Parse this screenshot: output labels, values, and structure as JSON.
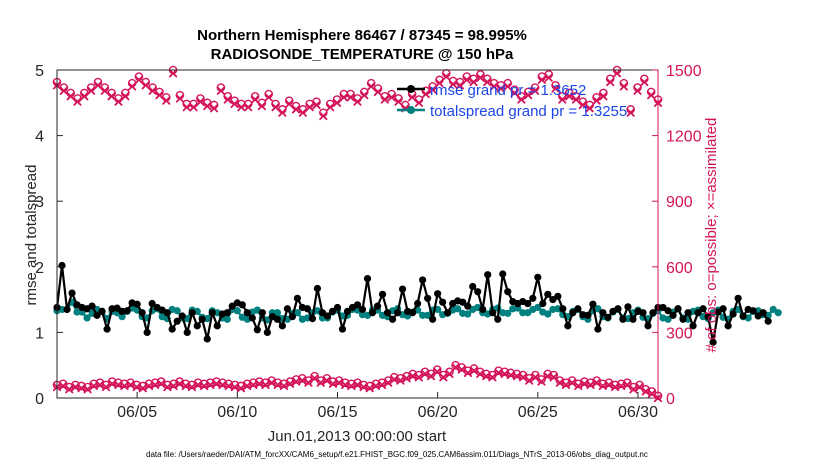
{
  "chart_data": {
    "type": "line",
    "title": [
      "Northern Hemisphere 86467 / 87345 = 98.995%",
      "RADIOSONDE_TEMPERATURE @ 150 hPa"
    ],
    "xlabel": "Jun.01,2013 00:00:00 start",
    "ylabel_left": "rmse and totalspread",
    "ylabel_right": "# of obs: o=possible; ×=assimilated",
    "xlim": [
      1,
      31
    ],
    "ylim_left": [
      0,
      5
    ],
    "ylim_right": [
      0,
      1500
    ],
    "x_ticks": [
      {
        "x": 5,
        "label": "06/05"
      },
      {
        "x": 10,
        "label": "06/10"
      },
      {
        "x": 15,
        "label": "06/15"
      },
      {
        "x": 20,
        "label": "06/20"
      },
      {
        "x": 25,
        "label": "06/25"
      },
      {
        "x": 30,
        "label": "06/30"
      }
    ],
    "y_ticks_left": [
      "0",
      "1",
      "2",
      "3",
      "4",
      "5"
    ],
    "y_ticks_right": [
      "0",
      "300",
      "600",
      "900",
      "1200",
      "1500"
    ],
    "colors": {
      "rmse": "#000000",
      "spread": "#00807e",
      "obs": "#d4145a",
      "legend_text": "#1e46e6"
    },
    "legend": {
      "placement": "top-right",
      "entries": [
        "rmse grand pr = 1.3652",
        "totalspread grand pr = 1.3255"
      ]
    },
    "x_start": 1,
    "x_step": 0.25,
    "series": [
      {
        "name": "rmse",
        "axis": "left",
        "values": [
          1.38,
          2.02,
          1.35,
          1.6,
          1.42,
          1.38,
          1.36,
          1.4,
          1.26,
          1.32,
          1.05,
          1.36,
          1.37,
          1.32,
          1.33,
          1.45,
          1.43,
          1.3,
          1.0,
          1.44,
          1.38,
          1.34,
          1.3,
          1.05,
          1.17,
          1.25,
          1.0,
          1.3,
          1.1,
          1.2,
          0.9,
          1.3,
          1.1,
          1.28,
          1.3,
          1.4,
          1.45,
          1.42,
          1.3,
          1.22,
          1.04,
          1.3,
          1.0,
          1.24,
          1.2,
          1.1,
          1.36,
          1.24,
          1.52,
          1.38,
          1.36,
          1.21,
          1.67,
          1.3,
          1.25,
          1.32,
          1.38,
          1.05,
          1.32,
          1.38,
          1.42,
          1.35,
          1.82,
          1.3,
          1.4,
          1.58,
          1.3,
          1.2,
          1.3,
          1.66,
          1.32,
          1.3,
          1.44,
          1.8,
          1.52,
          1.2,
          1.59,
          1.46,
          1.3,
          1.44,
          1.48,
          1.46,
          1.4,
          1.7,
          1.62,
          1.35,
          1.88,
          1.3,
          1.2,
          1.89,
          1.62,
          1.47,
          1.44,
          1.47,
          1.44,
          1.52,
          1.84,
          1.44,
          1.58,
          1.5,
          1.55,
          1.36,
          1.1,
          1.3,
          1.36,
          1.27,
          1.26,
          1.43,
          1.05,
          1.3,
          1.23,
          1.32,
          1.36,
          1.2,
          1.39,
          1.2,
          1.32,
          1.3,
          1.1,
          1.3,
          1.38,
          1.38,
          1.33,
          1.26,
          1.36,
          1.2,
          1.3,
          1.1,
          1.3,
          1.36,
          1.24,
          0.85,
          1.31,
          1.36,
          1.1,
          1.28,
          1.52,
          1.25,
          1.35,
          1.33,
          1.25,
          1.3,
          1.17
        ]
      },
      {
        "name": "totalspread",
        "axis": "left",
        "values": [
          1.33,
          1.35,
          1.35,
          1.46,
          1.31,
          1.31,
          1.22,
          1.29,
          1.35,
          1.32,
          1.21,
          1.32,
          1.3,
          1.24,
          1.32,
          1.37,
          1.34,
          1.24,
          1.22,
          1.33,
          1.36,
          1.24,
          1.21,
          1.35,
          1.33,
          1.22,
          1.21,
          1.34,
          1.32,
          1.23,
          1.21,
          1.33,
          1.3,
          1.22,
          1.2,
          1.35,
          1.33,
          1.23,
          1.2,
          1.31,
          1.34,
          1.22,
          1.19,
          1.3,
          1.3,
          1.21,
          1.2,
          1.29,
          1.3,
          1.2,
          1.22,
          1.3,
          1.33,
          1.22,
          1.22,
          1.31,
          1.34,
          1.25,
          1.26,
          1.35,
          1.34,
          1.27,
          1.26,
          1.34,
          1.34,
          1.26,
          1.24,
          1.33,
          1.36,
          1.27,
          1.25,
          1.31,
          1.34,
          1.26,
          1.26,
          1.34,
          1.35,
          1.27,
          1.29,
          1.34,
          1.36,
          1.29,
          1.28,
          1.35,
          1.38,
          1.3,
          1.28,
          1.35,
          1.37,
          1.3,
          1.29,
          1.36,
          1.37,
          1.3,
          1.3,
          1.35,
          1.38,
          1.31,
          1.28,
          1.35,
          1.36,
          1.27,
          1.24,
          1.32,
          1.35,
          1.24,
          1.2,
          1.33,
          1.36,
          1.24,
          1.22,
          1.31,
          1.35,
          1.22,
          1.21,
          1.3,
          1.34,
          1.23,
          1.21,
          1.29,
          1.33,
          1.22,
          1.2,
          1.31,
          1.36,
          1.22,
          1.2,
          1.32,
          1.34,
          1.24,
          1.21,
          1.3,
          1.34,
          1.23,
          1.2,
          1.32,
          1.35,
          1.24,
          1.22,
          1.32,
          1.33,
          1.27,
          1.26,
          1.35,
          1.3
        ]
      },
      {
        "name": "obs_possible",
        "axis": "right",
        "values": [
          1445,
          1420,
          1395,
          1370,
          1395,
          1420,
          1445,
          1420,
          1395,
          1370,
          1395,
          1440,
          1470,
          1445,
          1420,
          1400,
          1375,
          1500,
          1385,
          1345,
          1345,
          1370,
          1350,
          1340,
          1420,
          1380,
          1360,
          1345,
          1345,
          1380,
          1350,
          1390,
          1345,
          1320,
          1360,
          1335,
          1320,
          1345,
          1355,
          1305,
          1345,
          1365,
          1390,
          1390,
          1370,
          1400,
          1440,
          1415,
          1380,
          1390,
          1370,
          1340,
          1390,
          1365,
          1405,
          1425,
          1455,
          1485,
          1450,
          1445,
          1470,
          1460,
          1480,
          1460,
          1440,
          1430,
          1440,
          1410,
          1380,
          1400,
          1420,
          1470,
          1480,
          1430,
          1380,
          1395,
          1380,
          1355,
          1340,
          1375,
          1395,
          1460,
          1500,
          1440,
          1320,
          1420,
          1460,
          1400,
          1365
        ],
        "assimilated": [
          1430,
          1405,
          1380,
          1355,
          1380,
          1405,
          1430,
          1405,
          1380,
          1355,
          1380,
          1425,
          1455,
          1430,
          1405,
          1385,
          1360,
          1485,
          1370,
          1330,
          1330,
          1355,
          1335,
          1325,
          1405,
          1365,
          1345,
          1330,
          1330,
          1365,
          1335,
          1375,
          1330,
          1305,
          1345,
          1320,
          1305,
          1330,
          1340,
          1290,
          1330,
          1350,
          1375,
          1375,
          1355,
          1385,
          1425,
          1400,
          1365,
          1375,
          1355,
          1325,
          1375,
          1350,
          1390,
          1410,
          1440,
          1470,
          1435,
          1430,
          1455,
          1445,
          1465,
          1445,
          1425,
          1415,
          1425,
          1395,
          1365,
          1385,
          1405,
          1455,
          1465,
          1415,
          1365,
          1380,
          1365,
          1340,
          1325,
          1360,
          1380,
          1445,
          1485,
          1425,
          1305,
          1405,
          1445,
          1385,
          1350
        ]
      },
      {
        "name": "obs_low",
        "axis": "right",
        "values": [
          50,
          55,
          40,
          50,
          45,
          40,
          55,
          60,
          50,
          65,
          60,
          55,
          60,
          50,
          45,
          55,
          60,
          65,
          50,
          55,
          65,
          55,
          50,
          60,
          55,
          60,
          65,
          60,
          55,
          50,
          45,
          55,
          60,
          65,
          60,
          70,
          60,
          55,
          65,
          75,
          80,
          70,
          90,
          70,
          80,
          65,
          70,
          60,
          55,
          60,
          50,
          45,
          55,
          60,
          70,
          85,
          80,
          90,
          100,
          95,
          110,
          100,
          120,
          95,
          110,
          140,
          130,
          115,
          125,
          110,
          100,
          95,
          115,
          110,
          105,
          100,
          95,
          80,
          95,
          75,
          100,
          95,
          70,
          60,
          70,
          55,
          65,
          60,
          70,
          55,
          60,
          50,
          55,
          60,
          40,
          50,
          30,
          20,
          0
        ],
        "possible": [
          60,
          65,
          50,
          60,
          55,
          50,
          65,
          70,
          60,
          75,
          70,
          65,
          70,
          60,
          55,
          65,
          70,
          75,
          60,
          65,
          75,
          65,
          60,
          70,
          65,
          70,
          75,
          70,
          65,
          60,
          55,
          65,
          70,
          75,
          70,
          80,
          70,
          65,
          75,
          85,
          90,
          80,
          100,
          80,
          90,
          75,
          80,
          70,
          65,
          70,
          60,
          55,
          65,
          70,
          80,
          95,
          90,
          100,
          110,
          105,
          120,
          110,
          130,
          105,
          120,
          150,
          140,
          125,
          135,
          120,
          110,
          105,
          125,
          120,
          115,
          110,
          105,
          90,
          105,
          85,
          110,
          105,
          80,
          70,
          80,
          65,
          75,
          70,
          80,
          65,
          70,
          60,
          65,
          70,
          50,
          60,
          40,
          30,
          10
        ]
      }
    ]
  },
  "footer": "data file: /Users/raeder/DAI/ATM_forcXX/CAM6_setup/f.e21.FHIST_BGC.f09_025.CAM6assim.011/Diags_NTrS_2013-06/obs_diag_output.nc"
}
